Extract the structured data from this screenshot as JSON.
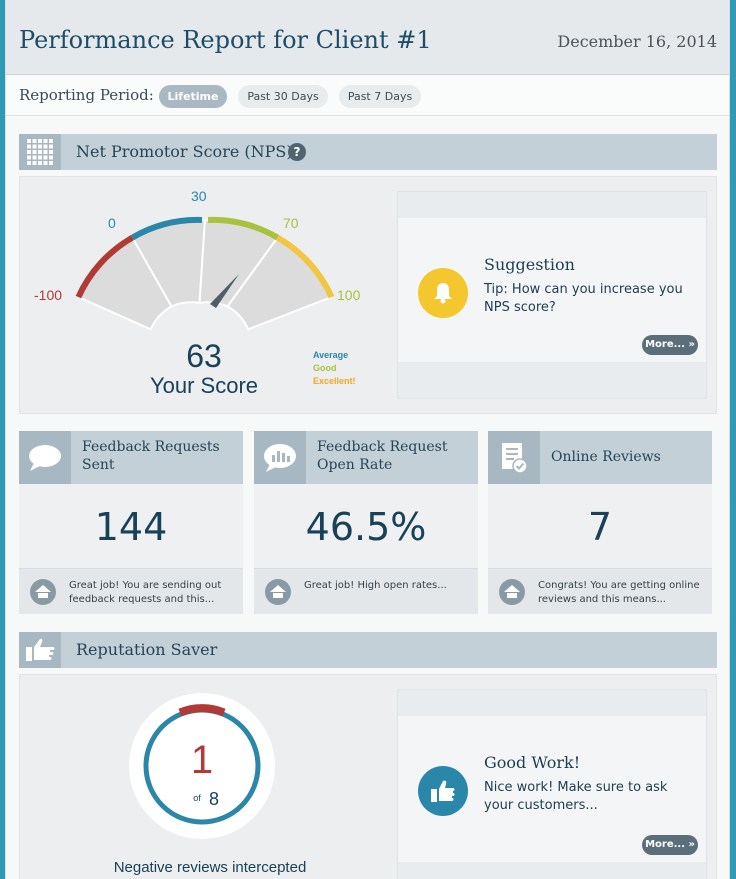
{
  "header": {
    "title": "Performance Report for Client #1",
    "date": "December 16, 2014"
  },
  "period": {
    "label": "Reporting Period:",
    "options": [
      "Lifetime",
      "Past 30 Days",
      "Past 7 Days"
    ],
    "selected": "Lifetime"
  },
  "nps": {
    "title": "Net Promotor Score (NPS)",
    "help": "?",
    "gauge_labels": [
      "-100",
      "0",
      "30",
      "70",
      "100"
    ],
    "score": "63",
    "score_value": 63,
    "score_caption": "Your Score",
    "legend": [
      "Average",
      "Good",
      "Excellent!"
    ],
    "colors": {
      "poor": "#b03a35",
      "average": "#2a87aa",
      "good": "#a9c23d",
      "excellent": "#f2c641"
    }
  },
  "suggestion": {
    "title": "Suggestion",
    "text": "Tip: How can you increase you NPS score?",
    "more": "More... »"
  },
  "stats": [
    {
      "title": "Feedback Requests Sent",
      "value": "144",
      "foot": "Great job! You are sending out feedback requests and this..."
    },
    {
      "title": "Feedback Request Open Rate",
      "value": "46.5%",
      "foot": "Great job! High open rates..."
    },
    {
      "title": "Online Reviews",
      "value": "7",
      "foot": "Congrats! You are getting online reviews and this means..."
    }
  ],
  "reputation": {
    "title": "Reputation Saver",
    "count": "1",
    "of_label": "of",
    "total": "8",
    "count_value": 1,
    "total_value": 8,
    "caption": "Negative reviews intercepted"
  },
  "goodwork": {
    "title": "Good Work!",
    "text": "Nice work! Make sure to ask your customers...",
    "more": "More... »"
  }
}
